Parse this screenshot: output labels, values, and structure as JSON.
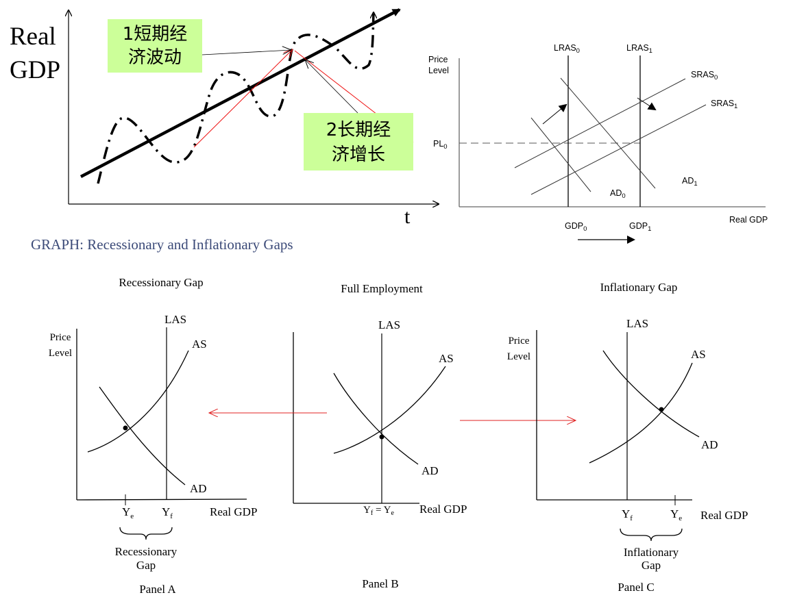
{
  "growth_chart": {
    "y_label_line1": "Real",
    "y_label_line2": "GDP",
    "x_label": "t",
    "box1_line1": "1短期经",
    "box1_line2": "济波动",
    "box2_line1": "2长期经",
    "box2_line2": "济增长",
    "box_color": "#ccff99"
  },
  "as_ad_chart": {
    "y_label_line1": "Price",
    "y_label_line2": "Level",
    "pl": "PL",
    "pl_sub": "0",
    "lras0": "LRAS",
    "lras0_sub": "0",
    "lras1": "LRAS",
    "lras1_sub": "1",
    "sras0": "SRAS",
    "sras0_sub": "0",
    "sras1": "SRAS",
    "sras1_sub": "1",
    "ad0": "AD",
    "ad0_sub": "0",
    "ad1": "AD",
    "ad1_sub": "1",
    "gdp0": "GDP",
    "gdp0_sub": "0",
    "gdp1": "GDP",
    "gdp1_sub": "1",
    "x_label": "Real GDP"
  },
  "gaps": {
    "heading": "GRAPH: Recessionary and Inflationary Gaps",
    "heading_color": "#3b4a78",
    "arrow_color": "#e02020",
    "panel_a": {
      "title": "Recessionary Gap",
      "y_label_line1": "Price",
      "y_label_line2": "Level",
      "las": "LAS",
      "as": "AS",
      "ad": "AD",
      "ye": "Y",
      "ye_sub": "e",
      "yf": "Y",
      "yf_sub": "f",
      "x_label": "Real GDP",
      "gap_line1": "Recessionary",
      "gap_line2": "Gap",
      "panel": "Panel A"
    },
    "panel_b": {
      "title": "Full Employment",
      "las": "LAS",
      "as": "AS",
      "ad": "AD",
      "yf_eq_ye": "Y",
      "sub_f": "f",
      "eq": " = Y",
      "sub_e": "e",
      "x_label": "Real GDP",
      "panel": "Panel B"
    },
    "panel_c": {
      "title": "Inflationary Gap",
      "y_label_line1": "Price",
      "y_label_line2": "Level",
      "las": "LAS",
      "as": "AS",
      "ad": "AD",
      "yf": "Y",
      "yf_sub": "f",
      "ye": "Y",
      "ye_sub": "e",
      "x_label": "Real GDP",
      "gap_line1": "Inflationary",
      "gap_line2": "Gap",
      "panel": "Panel C"
    }
  }
}
